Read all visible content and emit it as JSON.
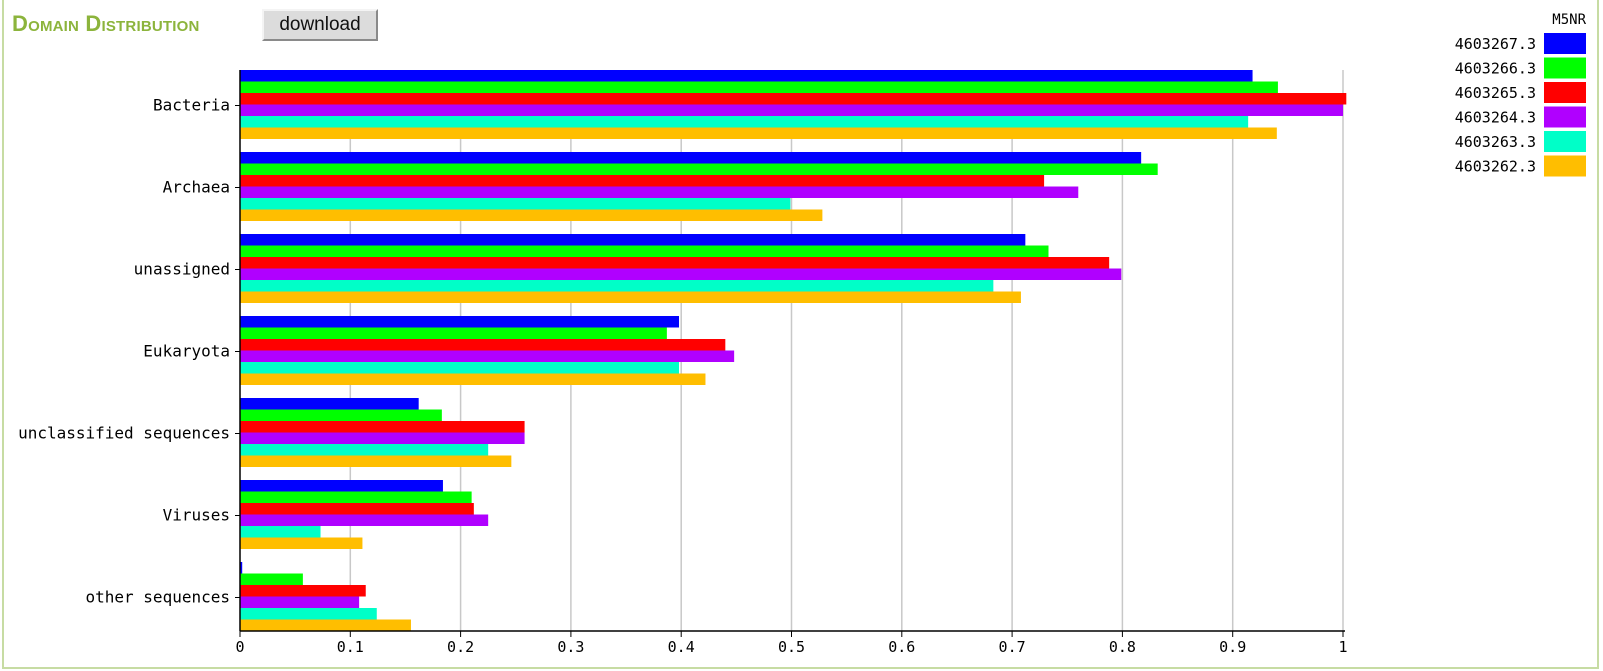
{
  "header": {
    "title": "Domain Distribution",
    "download_label": "download"
  },
  "chart_data": {
    "type": "bar",
    "orientation": "horizontal",
    "title": "",
    "xlabel": "",
    "ylabel": "",
    "xlim": [
      0,
      1
    ],
    "xticks": [
      "0",
      "0.1",
      "0.2",
      "0.3",
      "0.4",
      "0.5",
      "0.6",
      "0.7",
      "0.8",
      "0.9",
      "1"
    ],
    "grid": true,
    "legend_title": "M5NR",
    "legend_position": "top-right",
    "categories": [
      "Bacteria",
      "Archaea",
      "unassigned",
      "Eukaryota",
      "unclassified sequences",
      "Viruses",
      "other sequences"
    ],
    "series": [
      {
        "name": "4603267.3",
        "color": "#0000ff",
        "values": [
          0.918,
          0.817,
          0.712,
          0.398,
          0.162,
          0.184,
          0.002
        ]
      },
      {
        "name": "4603266.3",
        "color": "#00ff00",
        "values": [
          0.941,
          0.832,
          0.733,
          0.387,
          0.183,
          0.21,
          0.057
        ]
      },
      {
        "name": "4603265.3",
        "color": "#ff0000",
        "values": [
          1.003,
          0.729,
          0.788,
          0.44,
          0.258,
          0.212,
          0.114
        ]
      },
      {
        "name": "4603264.3",
        "color": "#b000ff",
        "values": [
          1.0,
          0.76,
          0.799,
          0.448,
          0.258,
          0.225,
          0.108
        ]
      },
      {
        "name": "4603263.3",
        "color": "#00ffc8",
        "values": [
          0.914,
          0.499,
          0.683,
          0.398,
          0.225,
          0.073,
          0.124
        ]
      },
      {
        "name": "4603262.3",
        "color": "#ffbe00",
        "values": [
          0.94,
          0.528,
          0.708,
          0.422,
          0.246,
          0.111,
          0.155
        ]
      }
    ]
  }
}
